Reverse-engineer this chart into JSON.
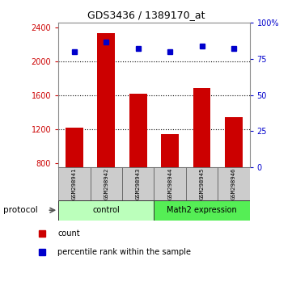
{
  "title": "GDS3436 / 1389170_at",
  "samples": [
    "GSM298941",
    "GSM298942",
    "GSM298943",
    "GSM298944",
    "GSM298945",
    "GSM298946"
  ],
  "counts": [
    1215,
    2330,
    1620,
    1145,
    1680,
    1340
  ],
  "percentile_ranks": [
    80,
    87,
    82,
    80,
    84,
    82
  ],
  "ylim_left": [
    750,
    2450
  ],
  "ylim_right": [
    0,
    100
  ],
  "yticks_left": [
    800,
    1200,
    1600,
    2000,
    2400
  ],
  "yticks_right": [
    0,
    25,
    50,
    75,
    100
  ],
  "ytick_labels_right": [
    "0",
    "25",
    "50",
    "75",
    "100%"
  ],
  "bar_color": "#cc0000",
  "dot_color": "#0000cc",
  "bar_bottom": 750,
  "groups": [
    {
      "label": "control",
      "start": 0,
      "end": 3,
      "color": "#bbffbb"
    },
    {
      "label": "Math2 expression",
      "start": 3,
      "end": 6,
      "color": "#55ee55"
    }
  ],
  "protocol_label": "protocol",
  "legend_items": [
    {
      "label": "count",
      "color": "#cc0000"
    },
    {
      "label": "percentile rank within the sample",
      "color": "#0000cc"
    }
  ],
  "tick_color_left": "#cc0000",
  "tick_color_right": "#0000cc",
  "grid_yticks": [
    2000,
    1600,
    1200
  ],
  "sample_box_color": "#cccccc",
  "title_fontsize": 9,
  "tick_fontsize": 7,
  "legend_fontsize": 7,
  "bar_width": 0.55
}
